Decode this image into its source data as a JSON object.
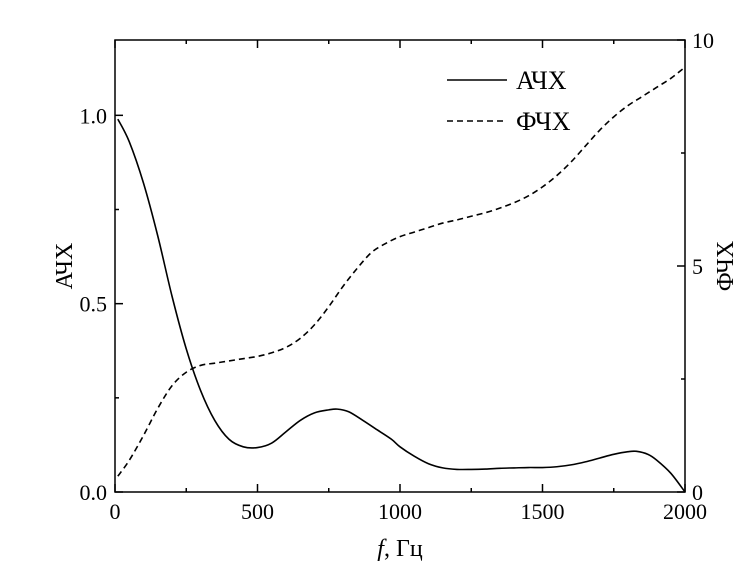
{
  "chart_data": {
    "type": "line",
    "xlabel_italic": "f",
    "xlabel_rest": ", Гц",
    "ylabel_left": "АЧХ",
    "ylabel_right": "ФЧХ",
    "xlim": [
      0,
      2000
    ],
    "ylim_left": [
      0,
      1.2
    ],
    "ylim_right": [
      0,
      10
    ],
    "xticks": [
      0,
      500,
      1000,
      1500,
      2000
    ],
    "yticks_left": [
      0.0,
      0.5,
      1.0
    ],
    "yticks_right": [
      0,
      5,
      10
    ],
    "xtick_labels": [
      "0",
      "500",
      "1000",
      "1500",
      "2000"
    ],
    "ytick_left_labels": [
      "0.0",
      "0.5",
      "1.0"
    ],
    "ytick_right_labels": [
      "0",
      "5",
      "10"
    ],
    "legend_position": "top-right",
    "grid": false,
    "series": [
      {
        "name": "АЧХ",
        "axis": "left",
        "style": "solid",
        "color": "#000000",
        "x": [
          10,
          50,
          100,
          150,
          200,
          250,
          300,
          350,
          400,
          450,
          500,
          550,
          600,
          650,
          700,
          750,
          780,
          820,
          870,
          920,
          970,
          1000,
          1050,
          1100,
          1150,
          1200,
          1250,
          1300,
          1350,
          1400,
          1450,
          1500,
          1550,
          1600,
          1650,
          1700,
          1750,
          1800,
          1830,
          1870,
          1900,
          1950,
          2000
        ],
        "y": [
          0.99,
          0.93,
          0.82,
          0.68,
          0.52,
          0.38,
          0.27,
          0.19,
          0.14,
          0.12,
          0.118,
          0.13,
          0.16,
          0.19,
          0.21,
          0.218,
          0.22,
          0.213,
          0.19,
          0.165,
          0.14,
          0.12,
          0.095,
          0.075,
          0.064,
          0.06,
          0.06,
          0.061,
          0.063,
          0.064,
          0.065,
          0.065,
          0.067,
          0.072,
          0.08,
          0.09,
          0.1,
          0.107,
          0.108,
          0.1,
          0.085,
          0.05,
          0.0
        ]
      },
      {
        "name": "ФЧХ",
        "axis": "right",
        "style": "dashed",
        "color": "#000000",
        "x": [
          10,
          50,
          100,
          150,
          200,
          250,
          300,
          350,
          400,
          450,
          500,
          550,
          600,
          650,
          700,
          750,
          800,
          850,
          900,
          950,
          1000,
          1050,
          1100,
          1150,
          1200,
          1250,
          1300,
          1350,
          1400,
          1450,
          1500,
          1550,
          1600,
          1650,
          1700,
          1750,
          1800,
          1850,
          1900,
          1950,
          2000
        ],
        "y": [
          0.35,
          0.7,
          1.25,
          1.85,
          2.35,
          2.65,
          2.8,
          2.85,
          2.9,
          2.95,
          3.0,
          3.08,
          3.2,
          3.4,
          3.7,
          4.1,
          4.55,
          4.95,
          5.3,
          5.5,
          5.65,
          5.75,
          5.85,
          5.95,
          6.02,
          6.1,
          6.18,
          6.28,
          6.4,
          6.55,
          6.75,
          7.0,
          7.3,
          7.65,
          8.0,
          8.3,
          8.55,
          8.75,
          8.95,
          9.15,
          9.4
        ]
      }
    ]
  }
}
